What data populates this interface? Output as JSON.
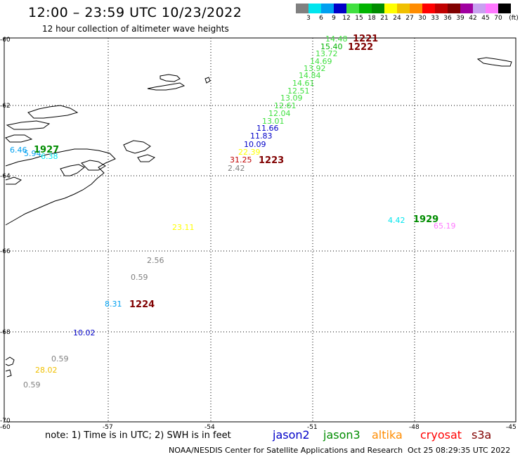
{
  "title": "12:00 – 23:59 UTC 10/23/2022",
  "subtitle": "12 hour collection of altimeter wave heights",
  "legend": {
    "unit": "(ft)",
    "bins": [
      {
        "label": "3",
        "color": "#808080"
      },
      {
        "label": "6",
        "color": "#00e5ee"
      },
      {
        "label": "9",
        "color": "#00a0f0"
      },
      {
        "label": "12",
        "color": "#0000c8"
      },
      {
        "label": "15",
        "color": "#40e040"
      },
      {
        "label": "18",
        "color": "#00b400"
      },
      {
        "label": "21",
        "color": "#008c00"
      },
      {
        "label": "24",
        "color": "#ffff00"
      },
      {
        "label": "27",
        "color": "#f0c000"
      },
      {
        "label": "30",
        "color": "#ff8c00"
      },
      {
        "label": "33",
        "color": "#ff0000"
      },
      {
        "label": "36",
        "color": "#c00000"
      },
      {
        "label": "39",
        "color": "#800000"
      },
      {
        "label": "42",
        "color": "#a000a0"
      },
      {
        "label": "45",
        "color": "#c8a0f0"
      },
      {
        "label": "70",
        "color": "#ff78ff"
      },
      {
        "label": "",
        "color": "#000000"
      }
    ]
  },
  "axes": {
    "lat_ticks": [
      "-60",
      "-62",
      "-64",
      "-66",
      "-68",
      "-70"
    ],
    "lon_ticks": [
      "-60",
      "-57",
      "-54",
      "-51",
      "-48",
      "-45"
    ]
  },
  "observations": [
    {
      "value": "14.48",
      "color": "#40e040"
    },
    {
      "value": "15.40",
      "color": "#00b400"
    },
    {
      "value": "13.72",
      "color": "#40e040"
    },
    {
      "value": "14.69",
      "color": "#40e040"
    },
    {
      "value": "13.92",
      "color": "#40e040"
    },
    {
      "value": "14.84",
      "color": "#40e040"
    },
    {
      "value": "14.61",
      "color": "#40e040"
    },
    {
      "value": "12.51",
      "color": "#40e040"
    },
    {
      "value": "13.09",
      "color": "#40e040"
    },
    {
      "value": "12.61",
      "color": "#40e040"
    },
    {
      "value": "12.04",
      "color": "#40e040"
    },
    {
      "value": "13.01",
      "color": "#40e040"
    },
    {
      "value": "11.66",
      "color": "#0000c8"
    },
    {
      "value": "11.83",
      "color": "#0000c8"
    },
    {
      "value": "10.09",
      "color": "#0000c8"
    },
    {
      "value": "22.39",
      "color": "#ffff00"
    },
    {
      "value": "31.25",
      "color": "#c00000"
    },
    {
      "value": "2.42",
      "color": "#808080"
    },
    {
      "value": "6.46",
      "color": "#00a0f0"
    },
    {
      "value": "5.94",
      "color": "#00a0f0"
    },
    {
      "value": "6.38",
      "color": "#00e5ee"
    },
    {
      "value": "23.11",
      "color": "#ffff00"
    },
    {
      "value": "4.42",
      "color": "#00e5ee"
    },
    {
      "value": "65.19",
      "color": "#ff78ff"
    },
    {
      "value": "2.56",
      "color": "#808080"
    },
    {
      "value": "0.59",
      "color": "#808080"
    },
    {
      "value": "8.31",
      "color": "#00a0f0"
    },
    {
      "value": "10.02",
      "color": "#0000c8"
    },
    {
      "value": "0.59",
      "color": "#808080"
    },
    {
      "value": "28.02",
      "color": "#f0c000"
    },
    {
      "value": "0.59",
      "color": "#808080"
    }
  ],
  "pass_times": [
    {
      "value": "1221",
      "color": "#800000"
    },
    {
      "value": "1222",
      "color": "#800000"
    },
    {
      "value": "1223",
      "color": "#800000"
    },
    {
      "value": "1927",
      "color": "#008c00"
    },
    {
      "value": "1929",
      "color": "#008c00"
    },
    {
      "value": "1224",
      "color": "#800000"
    }
  ],
  "note": "note: 1) Time is in UTC; 2) SWH is in feet",
  "satellites": [
    {
      "name": "jason2",
      "color": "#0000c8"
    },
    {
      "name": "jason3",
      "color": "#008c00"
    },
    {
      "name": "altika",
      "color": "#ff8c00"
    },
    {
      "name": "cryosat",
      "color": "#ff0000"
    },
    {
      "name": "s3a",
      "color": "#800000"
    }
  ],
  "credit": "NOAA/NESDIS Center for Satellite Applications and Research",
  "generated": "Oct 25 08:29:35 UTC 2022"
}
